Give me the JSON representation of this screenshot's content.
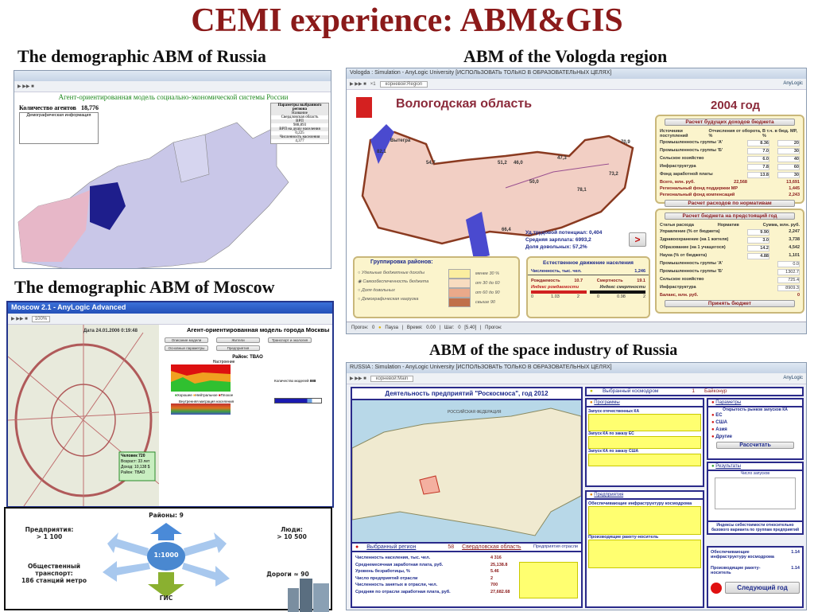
{
  "slide": {
    "title": "CEMI experience: ABM&GIS",
    "captions": {
      "russia": "The demographic ABM of Russia",
      "vologda": "ABM of the Vologda region",
      "moscow": "The demographic ABM of Moscow",
      "space": "ABM of the space industry of Russia"
    }
  },
  "russia": {
    "header": "Агент-ориентированная модель социально-экономической системы России",
    "agents_label": "Количество агентов",
    "agents_value": "18,776",
    "demo_info": "Демографическая информация",
    "params_title": "Параметры выбранного региона",
    "name_label": "Название",
    "region": "Свердловская область",
    "grp_label": "ВРП",
    "grp_value": "988,893",
    "grp_per_capita_label": "ВРП на душу населения",
    "grp_per_capita_value": "0,225",
    "population_label": "Численность населения",
    "population_value": "4,377"
  },
  "vologda": {
    "window_title": "Vologda : Simulation - AnyLogic University [ИСПОЛЬЗОВАТЬ ТОЛЬКО В ОБРАЗОВАТЕЛЬНЫХ ЦЕЛЯХ]",
    "experiment": "корневой:Region",
    "brand": "AnyLogic",
    "region_title": "Вологодская область",
    "year": "2004 год",
    "map_labels": [
      {
        "name": "Вытегра",
        "value": "82,1"
      },
      {
        "name": "",
        "value": "54,7"
      },
      {
        "name": "",
        "value": "51,2"
      },
      {
        "name": "",
        "value": "46,0"
      },
      {
        "name": "",
        "value": "47,3"
      },
      {
        "name": "",
        "value": "70,9"
      },
      {
        "name": "",
        "value": "73,2"
      },
      {
        "name": "",
        "value": "78,1"
      },
      {
        "name": "",
        "value": "50,0"
      },
      {
        "name": "",
        "value": "66,4"
      }
    ],
    "income": {
      "button": "Расчет будущих доходов бюджета",
      "col1": "Источники поступлений",
      "col2": "Отчисления от оборота, %",
      "col3": "В т.ч. в бюд. МР, %",
      "rows": [
        {
          "label": "Промышленность группы 'А'",
          "v1": "8.36",
          "v2": "20"
        },
        {
          "label": "Промышленность группы 'Б'",
          "v1": "7.0",
          "v2": "30"
        },
        {
          "label": "Сельское хозяйство",
          "v1": "6.0",
          "v2": "40"
        },
        {
          "label": "Инфраструктура",
          "v1": "7.8",
          "v2": "60"
        },
        {
          "label": "Фонд заработной платы",
          "v1": "13.8",
          "v2": "30"
        }
      ],
      "total_label": "Всего, млн. руб.",
      "total1": "22,568",
      "total2": "13,691",
      "fund1_label": "Региональный фонд поддержки МР",
      "fund1": "1,445",
      "fund2_label": "Региональный фонд компенсаций",
      "fund2": "2,243",
      "norm_button": "Расчет расходов по нормативам"
    },
    "budget": {
      "button": "Расчет бюджета на предстоящий год",
      "col1": "Статьи расхода",
      "col2": "Норматив",
      "col3": "Сумма, млн. руб.",
      "rows": [
        {
          "label": "Управление (% от бюджета)",
          "norm": "9.90",
          "sum": "2,247"
        },
        {
          "label": "Здравоохранение (на 1 жителя)",
          "norm": "3.0",
          "sum": "3,738"
        },
        {
          "label": "Образование (на 1 учащегося)",
          "norm": "14.2",
          "sum": "4,542"
        },
        {
          "label": "Наука (% от бюджета)",
          "norm": "4.88",
          "sum": "1,101"
        }
      ],
      "rows2": [
        {
          "label": "Промышленность группы 'А'",
          "value": "0.0"
        },
        {
          "label": "Промышленность группы 'Б'",
          "value": "1302.7"
        },
        {
          "label": "Сельское хозяйство",
          "value": "725.4"
        },
        {
          "label": "Инфраструктура",
          "value": "8909.3"
        }
      ],
      "balance_label": "Баланс, млн. руб.",
      "balance": "0",
      "accept": "Принять бюджет"
    },
    "stats": [
      {
        "label": "Уд.трудовой потенциал:",
        "value": "0,404"
      },
      {
        "label": "Средняя зарплата:",
        "value": "6993,2"
      },
      {
        "label": "Доля довольных:",
        "value": "57,2%"
      }
    ],
    "next_button": ">",
    "grouping": {
      "title": "Группировка районов:",
      "options": [
        "Удельные бюджетные доходы",
        "Самообеспеченность бюджета",
        "Доля довольных",
        "Демографическая нагрузка"
      ],
      "selected": 1,
      "legend": [
        {
          "label": "менее 30 %",
          "color": "#fbeea0"
        },
        {
          "label": "от 30 до 60",
          "color": "#f8dcc0"
        },
        {
          "label": "от 60 до 90",
          "color": "#eaa98a"
        },
        {
          "label": "свыше 90",
          "color": "#c0704a"
        }
      ]
    },
    "natural": {
      "title": "Естественное движение населения",
      "pop_label": "Численность, тыс. чел.",
      "pop_value": "1,246",
      "birth_label": "Рождаемость",
      "birth": "10.7",
      "death_label": "Смертность",
      "death": "19.1",
      "birth_index": "Индекс рождаемости",
      "death_index": "Индекс смертности",
      "ticks1": [
        "0",
        "1.03",
        "2"
      ],
      "ticks2": [
        "0",
        "0.98",
        "2"
      ]
    },
    "status": {
      "run": "Прогон: 0",
      "pause": "Пауза",
      "time": "Время: 0.00",
      "step": "Шаг: 0 [5.40]",
      "progress": "Прогон:"
    }
  },
  "moscow": {
    "window_title": "Moscow 2.1 - AnyLogic Advanced",
    "zoom": "100%",
    "date": "Дата 24.01.2006 0:19:48",
    "model_title": "Агент-ориентированная модель города Москвы",
    "buttons": [
      "Описание модели",
      "Жители",
      "Транспорт и экология",
      "Основные параметры",
      "Предприятия"
    ],
    "district": "Район: ТВАО",
    "chart_title": "Настроение",
    "legend": [
      "Хорошее",
      "Нейтральное",
      "Плохое"
    ],
    "chart2_title": "Внутренняя миграция населения",
    "agents_label": "Количество моделей",
    "agents_value": "888",
    "person_name": "Человек 720",
    "person_info": [
      "Возраст: 33 лет",
      "Доход: 10,138 $",
      "Район: ТВАО"
    ]
  },
  "diagram": {
    "center": "1:1000",
    "districts": "Районы: 9",
    "enterprises": "Предприятия:\n> 1 100",
    "people": "Люди:\n> 10 500",
    "transport": "Общественный\nтранспорт:\n186 станций метро",
    "roads": "Дороги ≈ 90",
    "gis": "ГИС"
  },
  "space": {
    "window_title": "RUSSIA : Simulation - AnyLogic University [ИСПОЛЬЗОВАТЬ ТОЛЬКО В ОБРАЗОВАТЕЛЬНЫХ ЦЕЛЯХ]",
    "experiment": "корневой:Main",
    "brand": "AnyLogic",
    "title": "Деятельность предприятий \"Роскосмоса\", год 2012",
    "map_label": "РОССИЙСКАЯ ФЕДЕРАЦИЯ",
    "cosmodrome_label": "Выбранный космодром",
    "cosmodrome_no": "1",
    "cosmodrome": "Байконур",
    "programs": "Программы",
    "params": "Параметры",
    "prog_items": [
      "Запуск отечественных КА",
      "Запуск КА по заказу ЕС",
      "Запуск КА по заказу США"
    ],
    "market_title": "Открытость рынков запусков КА",
    "markets": [
      "ЕС",
      "США",
      "Азия",
      "Другие"
    ],
    "calc": "Рассчитать",
    "results": "Результаты",
    "launches": "Число запусков",
    "enterprises": "Предприятия",
    "ent1": "Обеспечивающие инфраструктуру космодрома",
    "ent2": "Производящие ракету-носитель",
    "index_title": "Индексы себестоимости относительно базового варианта по группам предприятий",
    "index1_label": "Обеспечивающие инфраструктуру космодрома",
    "index1": "1.14",
    "index2_label": "Производящие ракету-носитель",
    "index2": "1.14",
    "next_year": "Следующий год",
    "region_label": "Выбранный регион",
    "region_no": "58",
    "region": "Свердловская область",
    "industry": "Предприятия отрасли",
    "stats": [
      {
        "label": "Численность населения, тыс. чел.",
        "value": "4 316"
      },
      {
        "label": "Среднемесячная заработная плата, руб.",
        "value": "25,138.8"
      },
      {
        "label": "Уровень безработицы, %",
        "value": "5.46"
      },
      {
        "label": "Число предприятий отрасли",
        "value": "2"
      },
      {
        "label": "Численность занятых в отрасли, чел.",
        "value": "700"
      },
      {
        "label": "Средняя по отрасли заработная плата, руб.",
        "value": "27,682.68"
      }
    ]
  },
  "colors": {
    "title": "#8b1a1a",
    "vologda_map": "#f2cfc4",
    "russia_map": "#c9c7e8",
    "selected_region": "#1e1e8c",
    "space_frame": "#2a2a8a"
  }
}
